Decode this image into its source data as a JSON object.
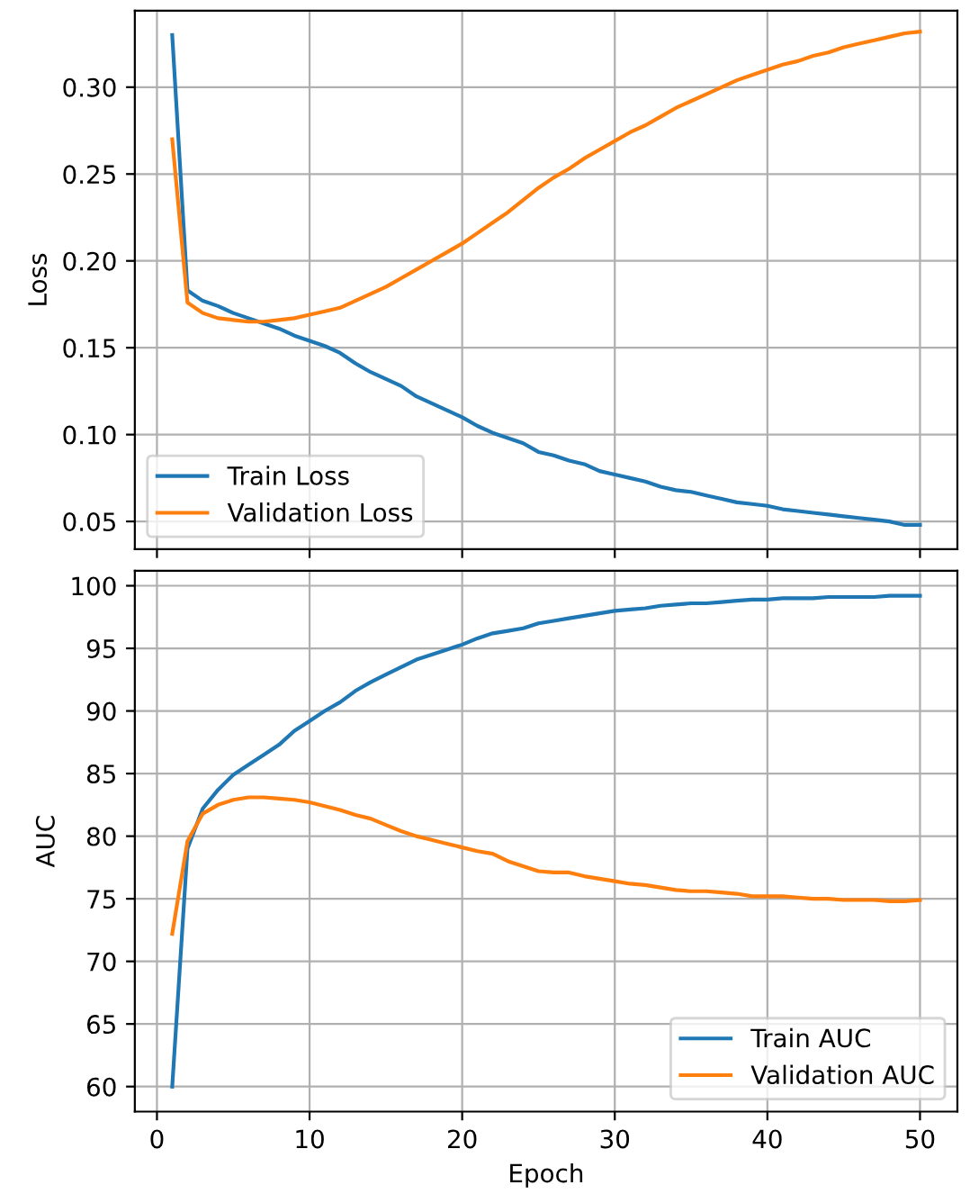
{
  "chart_data": [
    {
      "type": "line",
      "ylabel": "Loss",
      "x": [
        1,
        2,
        3,
        4,
        5,
        6,
        7,
        8,
        9,
        10,
        11,
        12,
        13,
        14,
        15,
        16,
        17,
        18,
        19,
        20,
        21,
        22,
        23,
        24,
        25,
        26,
        27,
        28,
        29,
        30,
        31,
        32,
        33,
        34,
        35,
        36,
        37,
        38,
        39,
        40,
        41,
        42,
        43,
        44,
        45,
        46,
        47,
        48,
        49,
        50
      ],
      "series": [
        {
          "name": "Train Loss",
          "color": "#1f77b4",
          "values": [
            0.33,
            0.183,
            0.177,
            0.174,
            0.17,
            0.167,
            0.164,
            0.161,
            0.157,
            0.154,
            0.151,
            0.147,
            0.141,
            0.136,
            0.132,
            0.128,
            0.122,
            0.118,
            0.114,
            0.11,
            0.105,
            0.101,
            0.098,
            0.095,
            0.09,
            0.088,
            0.085,
            0.083,
            0.079,
            0.077,
            0.075,
            0.073,
            0.07,
            0.068,
            0.067,
            0.065,
            0.063,
            0.061,
            0.06,
            0.059,
            0.057,
            0.056,
            0.055,
            0.054,
            0.053,
            0.052,
            0.051,
            0.05,
            0.048,
            0.048
          ]
        },
        {
          "name": "Validation Loss",
          "color": "#ff7f0e",
          "values": [
            0.27,
            0.176,
            0.17,
            0.167,
            0.166,
            0.165,
            0.165,
            0.166,
            0.167,
            0.169,
            0.171,
            0.173,
            0.177,
            0.181,
            0.185,
            0.19,
            0.195,
            0.2,
            0.205,
            0.21,
            0.216,
            0.222,
            0.228,
            0.235,
            0.242,
            0.248,
            0.253,
            0.259,
            0.264,
            0.269,
            0.274,
            0.278,
            0.283,
            0.288,
            0.292,
            0.296,
            0.3,
            0.304,
            0.307,
            0.31,
            0.313,
            0.315,
            0.318,
            0.32,
            0.323,
            0.325,
            0.327,
            0.329,
            0.331,
            0.332
          ]
        }
      ],
      "xlim": [
        -1.45,
        52.45
      ],
      "xticks": [
        0,
        10,
        20,
        30,
        40,
        50
      ],
      "ylim": [
        0.034,
        0.344
      ],
      "yticks": [
        {
          "value": 0.05,
          "label": "0.05"
        },
        {
          "value": 0.1,
          "label": "0.10"
        },
        {
          "value": 0.15,
          "label": "0.15"
        },
        {
          "value": 0.2,
          "label": "0.20"
        },
        {
          "value": 0.25,
          "label": "0.25"
        },
        {
          "value": 0.3,
          "label": "0.30"
        }
      ],
      "tick_labels": "y",
      "grid": true,
      "legend": "bottom left"
    },
    {
      "type": "line",
      "xlabel": "Epoch",
      "ylabel": "AUC",
      "x": [
        1,
        2,
        3,
        4,
        5,
        6,
        7,
        8,
        9,
        10,
        11,
        12,
        13,
        14,
        15,
        16,
        17,
        18,
        19,
        20,
        21,
        22,
        23,
        24,
        25,
        26,
        27,
        28,
        29,
        30,
        31,
        32,
        33,
        34,
        35,
        36,
        37,
        38,
        39,
        40,
        41,
        42,
        43,
        44,
        45,
        46,
        47,
        48,
        49,
        50
      ],
      "series": [
        {
          "name": "Train AUC",
          "color": "#1f77b4",
          "values": [
            60,
            79,
            82.2,
            83.7,
            84.9,
            85.7,
            86.5,
            87.3,
            88.4,
            89.2,
            90.0,
            90.7,
            91.6,
            92.3,
            92.9,
            93.5,
            94.1,
            94.5,
            94.9,
            95.3,
            95.8,
            96.2,
            96.4,
            96.6,
            97.0,
            97.2,
            97.4,
            97.6,
            97.8,
            98.0,
            98.1,
            98.2,
            98.4,
            98.5,
            98.6,
            98.6,
            98.7,
            98.8,
            98.9,
            98.9,
            99.0,
            99.0,
            99.0,
            99.1,
            99.1,
            99.1,
            99.1,
            99.2,
            99.2,
            99.2
          ]
        },
        {
          "name": "Validation AUC",
          "color": "#ff7f0e",
          "values": [
            72.2,
            79.6,
            81.8,
            82.5,
            82.9,
            83.1,
            83.1,
            83.0,
            82.9,
            82.7,
            82.4,
            82.1,
            81.7,
            81.4,
            80.9,
            80.4,
            80.0,
            79.7,
            79.4,
            79.1,
            78.8,
            78.6,
            78.0,
            77.6,
            77.2,
            77.1,
            77.1,
            76.8,
            76.6,
            76.4,
            76.2,
            76.1,
            75.9,
            75.7,
            75.6,
            75.6,
            75.5,
            75.4,
            75.2,
            75.2,
            75.2,
            75.1,
            75.0,
            75.0,
            74.9,
            74.9,
            74.9,
            74.8,
            74.8,
            74.9
          ]
        }
      ],
      "xlim": [
        -1.45,
        52.45
      ],
      "xticks": [
        0,
        10,
        20,
        30,
        40,
        50
      ],
      "ylim": [
        58.0,
        101.2
      ],
      "yticks": [
        60,
        65,
        70,
        75,
        80,
        85,
        90,
        95,
        100
      ],
      "grid": true,
      "legend": "bottom right"
    }
  ]
}
